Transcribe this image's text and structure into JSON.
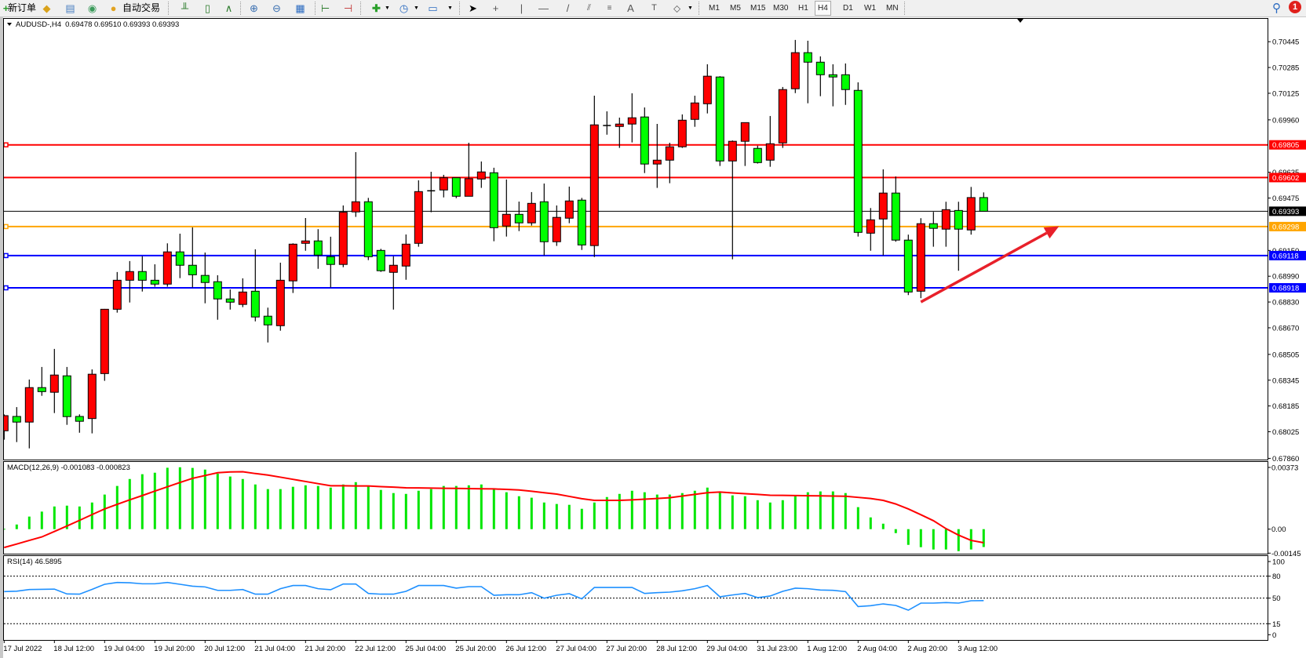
{
  "toolbar": {
    "new_order_label": "新订单",
    "auto_trading_label": "自动交易",
    "timeframes": [
      "M1",
      "M5",
      "M15",
      "M30",
      "H1",
      "H4",
      "D1",
      "W1",
      "MN"
    ],
    "active_timeframe": "H4",
    "notification_count": "1",
    "icons": [
      "new-order-icon",
      "metaeditor-icon",
      "navigator-icon",
      "signal-icon",
      "auto-trading-icon",
      "bar-chart-icon",
      "candlestick-icon",
      "line-chart-icon",
      "zoom-in-icon",
      "zoom-out-icon",
      "tile-windows-icon",
      "autoscroll-icon",
      "chart-shift-icon",
      "indicators-icon",
      "periods-icon",
      "templates-icon",
      "cursor-icon",
      "crosshair-icon",
      "vertical-line-icon",
      "horizontal-line-icon",
      "trendline-icon",
      "fibonacci-icon",
      "equidistant-channel-icon",
      "text-icon",
      "text-label-icon",
      "shapes-icon",
      "search-icon",
      "notification-icon"
    ]
  },
  "chart_header": {
    "symbol": "AUDUSD-,H4",
    "ohlc_text": "0.69478 0.69510 0.69393 0.69393"
  },
  "macd_header": "MACD(12,26,9) -0.001083 -0.000823",
  "rsi_header": "RSI(14) 46.5895",
  "colors": {
    "bull": "#ff0000",
    "bear": "#00ff00",
    "macd_histogram": "#00e600",
    "macd_signal": "#ff0000",
    "rsi_line": "#1e90ff",
    "resistance": "#ff0000",
    "pivot": "#ffa500",
    "support": "#0000ff",
    "bid": "#000000",
    "arrow": "#e8202a"
  },
  "chart_data": [
    {
      "type": "candlestick",
      "title": "AUDUSD-,H4",
      "ylim": [
        0.6786,
        0.70445
      ],
      "y_ticks": [
        "0.70445",
        "0.70285",
        "0.70125",
        "0.69960",
        "0.69635",
        "0.69475",
        "0.69150",
        "0.68990",
        "0.68830",
        "0.68670",
        "0.68505",
        "0.68345",
        "0.68185",
        "0.68025",
        "0.67860"
      ],
      "x_labels": [
        {
          "index": 0,
          "label": "17 Jul 2022"
        },
        {
          "index": 4,
          "label": "18 Jul 12:00"
        },
        {
          "index": 8,
          "label": "19 Jul 04:00"
        },
        {
          "index": 12,
          "label": "19 Jul 20:00"
        },
        {
          "index": 16,
          "label": "20 Jul 12:00"
        },
        {
          "index": 20,
          "label": "21 Jul 04:00"
        },
        {
          "index": 24,
          "label": "21 Jul 20:00"
        },
        {
          "index": 28,
          "label": "22 Jul 12:00"
        },
        {
          "index": 32,
          "label": "25 Jul 04:00"
        },
        {
          "index": 36,
          "label": "25 Jul 20:00"
        },
        {
          "index": 40,
          "label": "26 Jul 12:00"
        },
        {
          "index": 44,
          "label": "27 Jul 04:00"
        },
        {
          "index": 48,
          "label": "27 Jul 20:00"
        },
        {
          "index": 52,
          "label": "28 Jul 12:00"
        },
        {
          "index": 56,
          "label": "29 Jul 04:00"
        },
        {
          "index": 60,
          "label": "31 Jul 23:00"
        },
        {
          "index": 64,
          "label": "1 Aug 12:00"
        },
        {
          "index": 68,
          "label": "2 Aug 04:00"
        },
        {
          "index": 72,
          "label": "2 Aug 20:00"
        },
        {
          "index": 76,
          "label": "3 Aug 12:00"
        }
      ],
      "ohlc": [
        [
          0.68031,
          0.68133,
          0.67976,
          0.68125
        ],
        [
          0.6812,
          0.68178,
          0.67961,
          0.68085
        ],
        [
          0.68085,
          0.68349,
          0.67922,
          0.68299
        ],
        [
          0.68299,
          0.68427,
          0.68248,
          0.68274
        ],
        [
          0.6827,
          0.68539,
          0.68141,
          0.68377
        ],
        [
          0.68372,
          0.68427,
          0.68068,
          0.68119
        ],
        [
          0.6812,
          0.68133,
          0.68019,
          0.6809
        ],
        [
          0.68107,
          0.68412,
          0.68015,
          0.68382
        ],
        [
          0.68386,
          0.68787,
          0.68341,
          0.68785
        ],
        [
          0.68785,
          0.69016,
          0.68764,
          0.68965
        ],
        [
          0.68965,
          0.69084,
          0.68827,
          0.69019
        ],
        [
          0.69019,
          0.69114,
          0.68895,
          0.68965
        ],
        [
          0.68965,
          0.69064,
          0.68925,
          0.68941
        ],
        [
          0.68941,
          0.69194,
          0.68925,
          0.69141
        ],
        [
          0.69141,
          0.69254,
          0.68978,
          0.69058
        ],
        [
          0.69058,
          0.69293,
          0.6892,
          0.68999
        ],
        [
          0.68995,
          0.69137,
          0.68822,
          0.68951
        ],
        [
          0.68956,
          0.68996,
          0.6872,
          0.68849
        ],
        [
          0.68849,
          0.68908,
          0.68783,
          0.68829
        ],
        [
          0.68815,
          0.68977,
          0.68798,
          0.68892
        ],
        [
          0.68897,
          0.69157,
          0.6871,
          0.68737
        ],
        [
          0.68742,
          0.68795,
          0.68579,
          0.68688
        ],
        [
          0.68683,
          0.69074,
          0.68652,
          0.68965
        ],
        [
          0.68961,
          0.69194,
          0.68886,
          0.69189
        ],
        [
          0.69194,
          0.69351,
          0.69148,
          0.69209
        ],
        [
          0.69209,
          0.69282,
          0.69036,
          0.69121
        ],
        [
          0.69111,
          0.69235,
          0.6892,
          0.69063
        ],
        [
          0.69063,
          0.69429,
          0.69046,
          0.69387
        ],
        [
          0.69389,
          0.6976,
          0.69358,
          0.69452
        ],
        [
          0.69452,
          0.69476,
          0.6909,
          0.69111
        ],
        [
          0.6915,
          0.6916,
          0.69017,
          0.69024
        ],
        [
          0.69014,
          0.69114,
          0.68783,
          0.69058
        ],
        [
          0.69053,
          0.69249,
          0.68968,
          0.69189
        ],
        [
          0.69194,
          0.69585,
          0.69173,
          0.69515
        ],
        [
          0.6952,
          0.69638,
          0.69387,
          0.6952
        ],
        [
          0.69525,
          0.69619,
          0.69479,
          0.69601
        ],
        [
          0.69601,
          0.69601,
          0.69474,
          0.69486
        ],
        [
          0.69486,
          0.69818,
          0.69486,
          0.69595
        ],
        [
          0.69593,
          0.69702,
          0.69538,
          0.69637
        ],
        [
          0.69632,
          0.69663,
          0.69207,
          0.69291
        ],
        [
          0.69301,
          0.6959,
          0.69236,
          0.69374
        ],
        [
          0.69374,
          0.69453,
          0.6927,
          0.69321
        ],
        [
          0.69321,
          0.69512,
          0.69304,
          0.69442
        ],
        [
          0.69452,
          0.69565,
          0.69119,
          0.69204
        ],
        [
          0.69204,
          0.69429,
          0.69178,
          0.69355
        ],
        [
          0.6935,
          0.69546,
          0.69319,
          0.69457
        ],
        [
          0.69462,
          0.69476,
          0.69153,
          0.69184
        ],
        [
          0.6918,
          0.7011,
          0.69109,
          0.69929
        ],
        [
          0.69925,
          0.70013,
          0.69868,
          0.69925
        ],
        [
          0.69919,
          0.69974,
          0.69786,
          0.69934
        ],
        [
          0.69934,
          0.70125,
          0.6982,
          0.69973
        ],
        [
          0.69978,
          0.70037,
          0.6963,
          0.69686
        ],
        [
          0.69686,
          0.69935,
          0.69538,
          0.6971
        ],
        [
          0.6971,
          0.69818,
          0.69567,
          0.69793
        ],
        [
          0.69793,
          0.69994,
          0.69786,
          0.69958
        ],
        [
          0.69963,
          0.7011,
          0.69917,
          0.70065
        ],
        [
          0.7006,
          0.70305,
          0.7,
          0.70231
        ],
        [
          0.70226,
          0.70231,
          0.69674,
          0.69705
        ],
        [
          0.69705,
          0.69832,
          0.69095,
          0.69827
        ],
        [
          0.69827,
          0.69943,
          0.69674,
          0.69943
        ],
        [
          0.69783,
          0.698,
          0.69689,
          0.69695
        ],
        [
          0.6971,
          0.69984,
          0.69669,
          0.69812
        ],
        [
          0.69817,
          0.70164,
          0.69786,
          0.70148
        ],
        [
          0.70153,
          0.70456,
          0.70126,
          0.70377
        ],
        [
          0.70377,
          0.70451,
          0.70063,
          0.70318
        ],
        [
          0.70318,
          0.70354,
          0.70107,
          0.7024
        ],
        [
          0.7024,
          0.70305,
          0.70044,
          0.70226
        ],
        [
          0.7024,
          0.7031,
          0.70053,
          0.70148
        ],
        [
          0.70143,
          0.70193,
          0.69236,
          0.69262
        ],
        [
          0.69257,
          0.69413,
          0.69148,
          0.6934
        ],
        [
          0.69345,
          0.69653,
          0.69119,
          0.69506
        ],
        [
          0.69506,
          0.69609,
          0.69204,
          0.69214
        ],
        [
          0.69214,
          0.69248,
          0.68873,
          0.68892
        ],
        [
          0.68897,
          0.6935,
          0.68854,
          0.69316
        ],
        [
          0.69316,
          0.69389,
          0.69173,
          0.69287
        ],
        [
          0.69282,
          0.69452,
          0.69173,
          0.69403
        ],
        [
          0.69398,
          0.69452,
          0.69024,
          0.69282
        ],
        [
          0.69277,
          0.69544,
          0.69248,
          0.69478
        ],
        [
          0.69478,
          0.6951,
          0.69393,
          0.69393
        ]
      ],
      "horizontal_lines": [
        {
          "price": "0.69805",
          "color": "#ff0000",
          "marker": true
        },
        {
          "price": "0.69602",
          "color": "#ff0000",
          "marker": false
        },
        {
          "price": "0.69393",
          "color": "#000000",
          "marker": false,
          "bid": true
        },
        {
          "price": "0.69298",
          "color": "#ffa500",
          "marker": true
        },
        {
          "price": "0.69118",
          "color": "#0000ff",
          "marker": true
        },
        {
          "price": "0.68918",
          "color": "#0000ff",
          "marker": true
        }
      ],
      "annotation": {
        "type": "arrow",
        "direction": "up-right",
        "color": "#e8202a",
        "from": {
          "index": 73,
          "price": 0.6883
        },
        "to": {
          "index": 84,
          "price": 0.693
        }
      }
    },
    {
      "type": "bar+line",
      "title": "MACD(12,26,9) -0.001083 -0.000823",
      "ylim": [
        -0.00145,
        0.00373
      ],
      "y_ticks": [
        "0.00373",
        "0.00",
        "-0.00145"
      ],
      "histogram": [
        2e-05,
        0.00028,
        0.00076,
        0.00106,
        0.00137,
        0.00142,
        0.00137,
        0.00161,
        0.00209,
        0.00261,
        0.00303,
        0.00332,
        0.00341,
        0.00371,
        0.00374,
        0.0037,
        0.0036,
        0.00335,
        0.00318,
        0.00303,
        0.0027,
        0.00242,
        0.00242,
        0.00256,
        0.00265,
        0.00261,
        0.00251,
        0.0027,
        0.00284,
        0.00261,
        0.00237,
        0.00218,
        0.00213,
        0.00232,
        0.00242,
        0.00261,
        0.00261,
        0.00265,
        0.0027,
        0.00242,
        0.00223,
        0.00199,
        0.0019,
        0.00161,
        0.00152,
        0.00147,
        0.00123,
        0.00161,
        0.00194,
        0.00213,
        0.00232,
        0.00223,
        0.00209,
        0.00209,
        0.00218,
        0.00232,
        0.00251,
        0.00223,
        0.00204,
        0.00199,
        0.00175,
        0.00161,
        0.00175,
        0.00204,
        0.00223,
        0.00228,
        0.00228,
        0.00218,
        0.00133,
        0.00071,
        0.00033,
        -0.00024,
        -0.00095,
        -0.00109,
        -0.00123,
        -0.00123,
        -0.00133,
        -0.00123,
        -0.00108
      ],
      "signal": [
        -0.00111,
        -0.0009,
        -0.00068,
        -0.00047,
        -0.00014,
        0.00019,
        0.00053,
        0.00088,
        0.00122,
        0.0015,
        0.00177,
        0.00203,
        0.0023,
        0.00256,
        0.00282,
        0.00307,
        0.00324,
        0.00341,
        0.00346,
        0.00347,
        0.00336,
        0.00327,
        0.00314,
        0.00301,
        0.00288,
        0.00275,
        0.00262,
        0.00262,
        0.00261,
        0.00261,
        0.00257,
        0.00254,
        0.0025,
        0.00249,
        0.00248,
        0.00247,
        0.00246,
        0.00245,
        0.00244,
        0.00243,
        0.0024,
        0.00237,
        0.00229,
        0.0022,
        0.00212,
        0.00198,
        0.00184,
        0.00174,
        0.00174,
        0.00174,
        0.00177,
        0.00181,
        0.00185,
        0.0019,
        0.002,
        0.0021,
        0.0022,
        0.00224,
        0.00219,
        0.00214,
        0.0021,
        0.00205,
        0.00204,
        0.00203,
        0.00202,
        0.00201,
        0.002,
        0.00199,
        0.00192,
        0.00185,
        0.00174,
        0.00152,
        0.00122,
        0.00087,
        0.00051,
        3e-05,
        -0.00036,
        -0.00068,
        -0.00082
      ]
    },
    {
      "type": "line",
      "title": "RSI(14) 46.5895",
      "ylim": [
        0,
        100
      ],
      "y_ticks": [
        "100",
        "80",
        "50",
        "15",
        "0"
      ],
      "levels": [
        80,
        50,
        15
      ],
      "values": [
        58.9,
        59.5,
        61.7,
        62.0,
        62.3,
        55.7,
        55.4,
        62.0,
        68.9,
        71.4,
        71.0,
        69.6,
        69.6,
        71.4,
        68.9,
        66.3,
        65.3,
        60.6,
        60.6,
        61.7,
        55.4,
        55.4,
        62.9,
        67.2,
        67.2,
        62.9,
        61.5,
        69.3,
        69.3,
        56.4,
        55.4,
        55.4,
        59.3,
        67.2,
        67.2,
        67.2,
        63.6,
        65.7,
        65.7,
        53.9,
        54.6,
        54.6,
        57.5,
        49.9,
        53.9,
        56.1,
        49.0,
        64.6,
        64.6,
        64.6,
        64.6,
        56.4,
        57.5,
        58.2,
        60.0,
        62.9,
        67.2,
        51.8,
        54.3,
        56.4,
        50.7,
        52.9,
        59.3,
        63.6,
        62.9,
        61.1,
        60.7,
        58.9,
        38.5,
        39.6,
        42.1,
        40.0,
        33.5,
        43.2,
        43.2,
        43.9,
        43.2,
        46.4,
        46.59
      ]
    }
  ]
}
